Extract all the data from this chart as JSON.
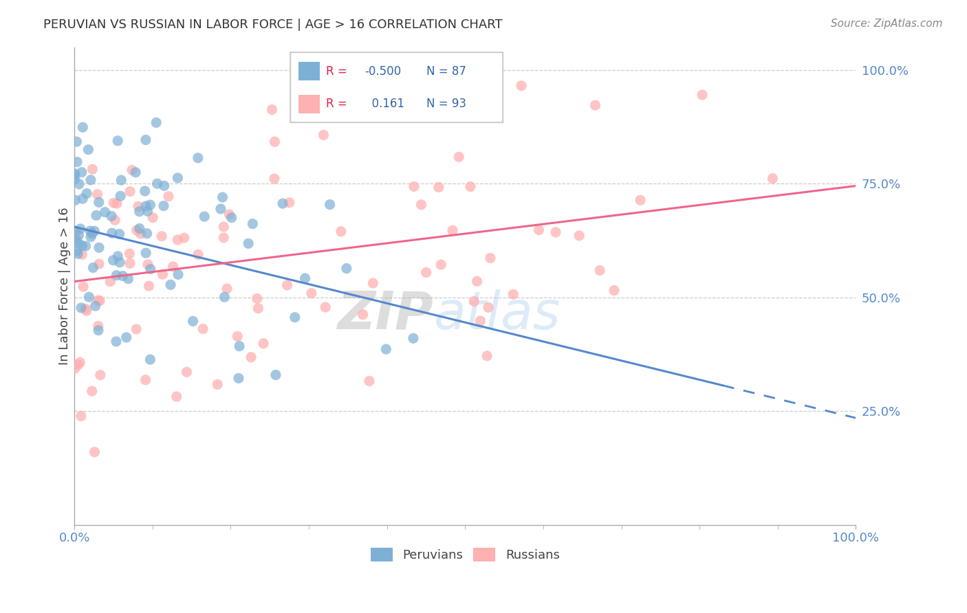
{
  "title": "PERUVIAN VS RUSSIAN IN LABOR FORCE | AGE > 16 CORRELATION CHART",
  "source": "Source: ZipAtlas.com",
  "ylabel": "In Labor Force | Age > 16",
  "xlim": [
    0.0,
    1.0
  ],
  "ylim": [
    0.0,
    1.05
  ],
  "y_ticks": [
    0.25,
    0.5,
    0.75,
    1.0
  ],
  "y_tick_labels": [
    "25.0%",
    "50.0%",
    "75.0%",
    "100.0%"
  ],
  "peruvian_color": "#7EB0D5",
  "russian_color": "#FFB0B0",
  "peruvian_line_color": "#5588CC",
  "russian_line_color": "#EE6688",
  "R_peruvian": -0.5,
  "N_peruvian": 87,
  "R_russian": 0.161,
  "N_russian": 93,
  "watermark_zip": "ZIP",
  "watermark_atlas": "atlas",
  "background_color": "#ffffff",
  "grid_color": "#cccccc",
  "peruvian_intercept": 0.655,
  "peruvian_slope": -0.42,
  "russian_intercept": 0.535,
  "russian_slope": 0.21
}
